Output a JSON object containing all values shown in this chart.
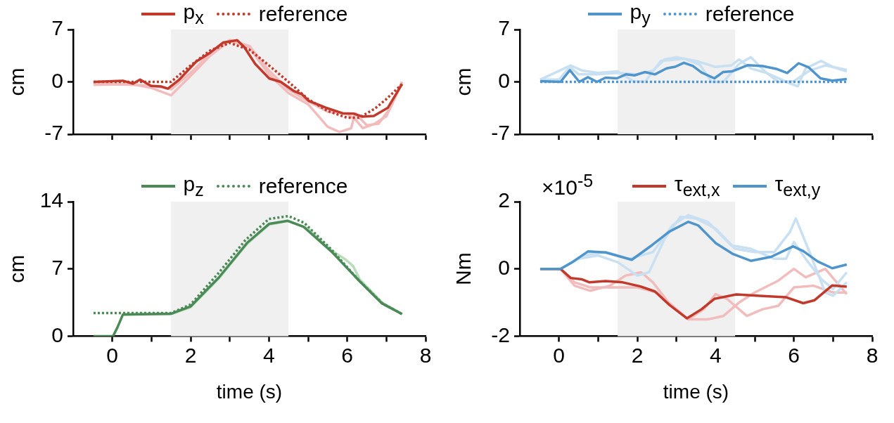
{
  "chart_data": [
    {
      "type": "line",
      "ylabel": "cm",
      "xlim": [
        -1,
        8
      ],
      "xticks": [
        0,
        {
          "value": 1,
          "label": null
        },
        2,
        {
          "value": 3,
          "label": null
        },
        4,
        {
          "value": 5,
          "label": null
        },
        6,
        {
          "value": 7,
          "label": null
        },
        8
      ],
      "ylim": [
        -7,
        7
      ],
      "yticks": [
        -7,
        0,
        7
      ],
      "grid": false,
      "legend": "top",
      "tick_labels": "y",
      "bands": [
        {
          "axis": "x",
          "from": 1.5,
          "to": 4.5,
          "color": "#f0f0f0"
        }
      ],
      "series": [
        {
          "color": "#f2bcbc",
          "x": [
            -0.48,
            0.5,
            1.0,
            1.5,
            2.0,
            2.5,
            3.0,
            3.5,
            4.0,
            4.5,
            5.0,
            5.5,
            5.8,
            6.1,
            6.2,
            6.5,
            6.8,
            7.1,
            7.4
          ],
          "values": [
            -0.4,
            -0.3,
            -0.8,
            -1.8,
            0.8,
            3.5,
            5.5,
            4.6,
            1.0,
            -1.5,
            -3.0,
            -6.0,
            -6.7,
            -6.2,
            -4.2,
            -5.8,
            -5.6,
            -3.5,
            0
          ]
        },
        {
          "color": "#f2bcbc",
          "x": [
            -0.48,
            1.0,
            1.5,
            2.0,
            2.5,
            3.0,
            3.5,
            4.0,
            4.5,
            5.0,
            5.5,
            6.0,
            6.2,
            6.4,
            6.7,
            7.0,
            7.4
          ],
          "values": [
            -0.2,
            -0.5,
            -1.0,
            1.2,
            3.8,
            5.6,
            4.8,
            1.5,
            -1.0,
            -2.6,
            -4.0,
            -4.3,
            -5.0,
            -6.2,
            -5.6,
            -4.6,
            0
          ]
        },
        {
          "name": "p$_{x}$",
          "color": "#c0392b",
          "line_style": "solid",
          "x": [
            -0.48,
            0.27,
            0.53,
            0.71,
            0.99,
            1.24,
            1.42,
            1.71,
            2.14,
            2.5,
            2.83,
            3.19,
            3.37,
            3.65,
            4.01,
            4.3,
            4.63,
            4.84,
            5.02,
            5.45,
            5.88,
            6.17,
            6.39,
            6.68,
            7.04,
            7.4
          ],
          "values": [
            0,
            0.15,
            -0.24,
            0.3,
            -0.54,
            -0.6,
            -0.9,
            0.3,
            2.7,
            3.9,
            5.26,
            5.56,
            4.65,
            2.4,
            0.45,
            0,
            -1.2,
            -1.65,
            -2.55,
            -3.45,
            -4.2,
            -4.26,
            -4.65,
            -4.56,
            -3.45,
            -0.3
          ]
        },
        {
          "name": "reference",
          "color": "#c0392b",
          "line_style": "dotted",
          "x": [
            -0.48,
            1.5,
            2.0,
            2.5,
            3.0,
            3.5,
            4.0,
            4.5,
            5.0,
            5.5,
            6.0,
            6.3,
            6.7,
            7.0,
            7.4
          ],
          "values": [
            0,
            0,
            2.2,
            4.2,
            5.2,
            4.3,
            2.2,
            0,
            -2.3,
            -3.9,
            -4.8,
            -4.8,
            -3.6,
            -2.3,
            -0.3
          ]
        }
      ]
    },
    {
      "type": "line",
      "ylabel": "cm",
      "xlim": [
        -1,
        8
      ],
      "xticks": [
        0,
        {
          "value": 1,
          "label": null
        },
        2,
        {
          "value": 3,
          "label": null
        },
        4,
        {
          "value": 5,
          "label": null
        },
        6,
        {
          "value": 7,
          "label": null
        },
        8
      ],
      "ylim": [
        -7,
        7
      ],
      "yticks": [
        -7,
        0,
        7
      ],
      "grid": false,
      "legend": "top",
      "tick_labels": "y",
      "bands": [
        {
          "axis": "x",
          "from": 1.5,
          "to": 4.5,
          "color": "#f0f0f0"
        }
      ],
      "series": [
        {
          "color": "#c8e0f2",
          "x": [
            -0.48,
            0,
            0.28,
            0.5,
            1.0,
            1.5,
            2.0,
            2.4,
            2.7,
            3.0,
            3.5,
            4.0,
            4.4,
            4.6,
            4.9,
            5.3,
            5.9,
            6.1,
            6.3,
            6.7,
            7.0,
            7.35
          ],
          "values": [
            0.3,
            0.3,
            2.0,
            1.0,
            1.0,
            1.2,
            1.0,
            1.5,
            3.0,
            3.3,
            2.8,
            2.0,
            2.2,
            3.0,
            1.8,
            1.2,
            -0.2,
            -0.6,
            1.8,
            2.8,
            2.0,
            1.4
          ]
        },
        {
          "color": "#c8e0f2",
          "x": [
            -0.48,
            0.3,
            0.6,
            1.0,
            1.5,
            1.9,
            2.2,
            2.6,
            3.2,
            3.6,
            3.9,
            4.2,
            4.6,
            4.9,
            5.3,
            5.6,
            6.0,
            6.4,
            6.8,
            7.35
          ],
          "values": [
            0.3,
            2.2,
            1.5,
            1.2,
            1.4,
            0.1,
            0,
            2.8,
            3.1,
            2.3,
            0,
            0,
            2.4,
            3.3,
            1.2,
            0,
            0.1,
            1.5,
            2.2,
            1.6
          ]
        },
        {
          "name": "p$_{y}$",
          "color": "#4f95cc",
          "line_style": "solid",
          "x": [
            -0.48,
            0.04,
            0.28,
            0.52,
            0.74,
            0.97,
            1.19,
            1.48,
            1.71,
            1.93,
            2.19,
            2.45,
            2.75,
            2.97,
            3.19,
            3.42,
            3.64,
            3.97,
            4.19,
            4.42,
            4.83,
            5.2,
            5.57,
            5.83,
            6.12,
            6.38,
            6.68,
            6.98,
            7.35
          ],
          "values": [
            0.1,
            0,
            1.56,
            0,
            0.62,
            0,
            0.56,
            0.47,
            1.0,
            0.87,
            1.31,
            1.0,
            1.81,
            2.02,
            2.55,
            2.12,
            1.25,
            0.47,
            1.31,
            1.4,
            2.24,
            2.12,
            1.71,
            1.18,
            2.49,
            1.93,
            0.47,
            0.16,
            0.37
          ]
        },
        {
          "name": "reference",
          "color": "#4f95cc",
          "line_style": "dotted",
          "x": [
            -0.48,
            7.35
          ],
          "values": [
            0,
            0
          ]
        }
      ]
    },
    {
      "type": "line",
      "xlabel": "time (s)",
      "ylabel": "cm",
      "xlim": [
        -1,
        8
      ],
      "xticks": [
        0,
        {
          "value": 1,
          "label": null
        },
        2,
        {
          "value": 3,
          "label": null
        },
        4,
        {
          "value": 5,
          "label": null
        },
        6,
        {
          "value": 7,
          "label": null
        },
        8
      ],
      "ylim": [
        0,
        14
      ],
      "yticks": [
        0,
        7,
        14
      ],
      "grid": false,
      "legend": "top",
      "bands": [
        {
          "axis": "x",
          "from": 1.5,
          "to": 4.5,
          "color": "#f0f0f0"
        }
      ],
      "series": [
        {
          "color": "#b9dcb9",
          "x": [
            0.3,
            1.5,
            2.0,
            2.72,
            3.44,
            4.0,
            4.5,
            5.0,
            5.6,
            5.95,
            6.15,
            6.32,
            6.89,
            7.4
          ],
          "values": [
            2.3,
            2.3,
            3.0,
            6.0,
            9.6,
            11.6,
            12.0,
            11.2,
            8.9,
            8.0,
            7.3,
            5.9,
            3.5,
            2.3
          ]
        },
        {
          "name": "p$_{z}$",
          "color": "#4a8a57",
          "line_style": "solid",
          "x": [
            -0.48,
            0.02,
            0.13,
            0.27,
            1.5,
            2.0,
            2.72,
            3.44,
            4.01,
            4.48,
            4.88,
            5.6,
            6.32,
            6.89,
            7.4
          ],
          "values": [
            0,
            0,
            0.9,
            2.25,
            2.33,
            3.1,
            6.1,
            9.7,
            11.7,
            12.0,
            11.4,
            8.8,
            5.7,
            3.4,
            2.3
          ]
        },
        {
          "name": "reference",
          "color": "#4a8a57",
          "line_style": "dotted",
          "x": [
            -0.48,
            1.5,
            2.0,
            2.7,
            3.4,
            4.0,
            4.5,
            4.9,
            5.6,
            6.3,
            6.9,
            7.4
          ],
          "values": [
            2.4,
            2.4,
            3.3,
            6.5,
            10.0,
            12.2,
            12.5,
            11.8,
            9.0,
            5.8,
            3.4,
            2.3
          ]
        }
      ]
    },
    {
      "type": "line",
      "xlabel": "time (s)",
      "ylabel": "Nm",
      "xlim": [
        -1,
        8
      ],
      "xticks": [
        0,
        {
          "value": 1,
          "label": null
        },
        2,
        {
          "value": 3,
          "label": null
        },
        4,
        {
          "value": 5,
          "label": null
        },
        6,
        {
          "value": 7,
          "label": null
        },
        8
      ],
      "ylim": [
        -2,
        2
      ],
      "yticks": [
        -2,
        0,
        2
      ],
      "grid": false,
      "legend": "top",
      "annotations": [
        "×10$^{-5}$"
      ],
      "bands": [
        {
          "axis": "x",
          "from": 1.5,
          "to": 4.5,
          "color": "#f0f0f0"
        }
      ],
      "series": [
        {
          "color": "#f2bcbc",
          "x": [
            0.04,
            0.4,
            0.8,
            1.3,
            1.7,
            2.1,
            2.4,
            2.8,
            3.3,
            3.8,
            4.2,
            4.6,
            5.0,
            5.6,
            6.0,
            6.3,
            6.8,
            7.35
          ],
          "values": [
            0,
            -0.5,
            -0.65,
            -0.5,
            -0.2,
            -0.1,
            -0.4,
            -1.0,
            -1.5,
            -1.5,
            -1.4,
            -1.0,
            -0.7,
            -0.35,
            0,
            -0.25,
            0,
            -0.75
          ]
        },
        {
          "color": "#f2bcbc",
          "x": [
            0.04,
            0.4,
            0.8,
            1.3,
            2.0,
            2.5,
            3.0,
            3.3,
            3.7,
            4.0,
            4.3,
            4.8,
            5.2,
            5.6,
            6.0,
            6.5,
            7.0,
            7.35
          ],
          "values": [
            0,
            -0.4,
            -0.55,
            -0.55,
            -0.55,
            -0.7,
            -1.2,
            -1.5,
            -1.2,
            -0.75,
            -0.9,
            -1.4,
            -1.2,
            -1.1,
            -0.55,
            -0.5,
            -0.7,
            -0.7
          ]
        },
        {
          "color": "#c8e0f2",
          "x": [
            0.04,
            0.5,
            1.0,
            1.5,
            2.0,
            2.3,
            2.7,
            3.1,
            3.5,
            4.0,
            4.5,
            5.0,
            5.5,
            5.9,
            6.05,
            6.4,
            6.8,
            7.0,
            7.35
          ],
          "values": [
            0,
            0.3,
            0.4,
            0.2,
            -0.2,
            -0.1,
            0.9,
            1.55,
            1.5,
            1.2,
            0.6,
            0.5,
            0.5,
            1.1,
            1.5,
            0.5,
            -0.7,
            -0.8,
            -0.4
          ]
        },
        {
          "color": "#c8e0f2",
          "x": [
            0.04,
            0.6,
            1.2,
            1.8,
            2.4,
            2.9,
            3.3,
            3.8,
            4.4,
            4.9,
            5.5,
            5.8,
            6.0,
            6.3,
            6.7,
            7.0,
            7.35
          ],
          "values": [
            0,
            0.4,
            0.5,
            0.3,
            0.5,
            1.3,
            1.6,
            1.4,
            0.7,
            0.6,
            0.3,
            0.3,
            0.8,
            0.3,
            -0.3,
            -0.6,
            -0.1
          ]
        },
        {
          "name": "τ$_{ext,x}$",
          "color": "#c0392b",
          "line_style": "solid",
          "x": [
            -0.48,
            0.04,
            0.3,
            0.59,
            0.78,
            1.19,
            1.63,
            2.08,
            2.45,
            2.82,
            3.27,
            3.64,
            3.97,
            4.53,
            5.12,
            5.79,
            6.24,
            6.53,
            6.98,
            7.35
          ],
          "values": [
            0,
            0,
            -0.27,
            -0.31,
            -0.4,
            -0.36,
            -0.4,
            -0.52,
            -0.67,
            -1.07,
            -1.47,
            -1.2,
            -0.89,
            -0.76,
            -0.8,
            -0.84,
            -1.02,
            -0.93,
            -0.49,
            -0.53
          ]
        },
        {
          "name": "τ$_{ext,y}$",
          "color": "#4f95cc",
          "line_style": "solid",
          "x": [
            -0.48,
            0.04,
            0.37,
            0.74,
            1.19,
            1.86,
            2.38,
            2.82,
            3.3,
            3.56,
            4.01,
            4.45,
            4.9,
            5.42,
            5.98,
            6.24,
            6.61,
            6.98,
            7.35
          ],
          "values": [
            0,
            0,
            0.22,
            0.52,
            0.49,
            0.27,
            0.71,
            1.11,
            1.4,
            1.29,
            0.76,
            0.44,
            0.24,
            0.36,
            0.67,
            0.53,
            0.22,
            0.02,
            0.13
          ]
        }
      ]
    }
  ]
}
